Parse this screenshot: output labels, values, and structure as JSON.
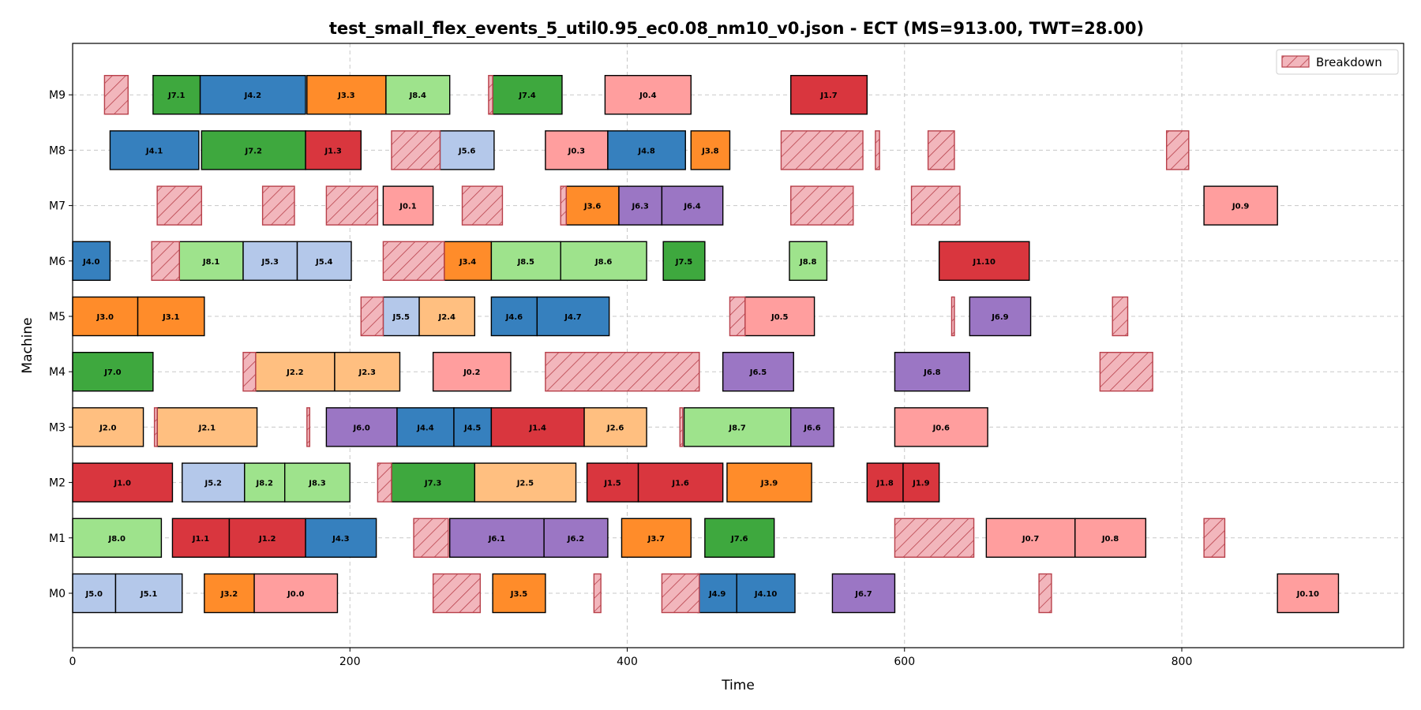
{
  "chart_data": {
    "type": "gantt",
    "title": "test_small_flex_events_5_util0.95_ec0.08_nm10_v0.json - ECT (MS=913.00, TWT=28.00)",
    "xlabel": "Time",
    "ylabel": "Machine",
    "xlim": [
      0,
      960
    ],
    "xticks": [
      0,
      200,
      400,
      600,
      800
    ],
    "machines": [
      "M0",
      "M1",
      "M2",
      "M3",
      "M4",
      "M5",
      "M6",
      "M7",
      "M8",
      "M9"
    ],
    "grid": true,
    "legend": {
      "label": "Breakdown",
      "position": "top-right"
    },
    "job_colors": {
      "J0": "#ff9e9e",
      "J1": "#d9363e",
      "J2": "#ffbf80",
      "J3": "#ff8c2a",
      "J4": "#3680be",
      "J5": "#b4c8ea",
      "J6": "#9b76c4",
      "J7": "#3ea83e",
      "J8": "#9ee38c"
    },
    "breakdown_style": {
      "fill": "#f2b6bc",
      "stroke": "#b8404a"
    },
    "operations": [
      {
        "machine": "M0",
        "label": "J5.0",
        "job": "J5",
        "start": 0,
        "end": 31
      },
      {
        "machine": "M0",
        "label": "J5.1",
        "job": "J5",
        "start": 31,
        "end": 79
      },
      {
        "machine": "M0",
        "label": "J3.2",
        "job": "J3",
        "start": 95,
        "end": 131
      },
      {
        "machine": "M0",
        "label": "J0.0",
        "job": "J0",
        "start": 131,
        "end": 191
      },
      {
        "machine": "M0",
        "label": "J3.5",
        "job": "J3",
        "start": 303,
        "end": 341
      },
      {
        "machine": "M0",
        "label": "J4.9",
        "job": "J4",
        "start": 451,
        "end": 479
      },
      {
        "machine": "M0",
        "label": "J4.10",
        "job": "J4",
        "start": 479,
        "end": 521
      },
      {
        "machine": "M0",
        "label": "J6.7",
        "job": "J6",
        "start": 548,
        "end": 593
      },
      {
        "machine": "M0",
        "label": "J0.10",
        "job": "J0",
        "start": 869,
        "end": 913
      },
      {
        "machine": "M1",
        "label": "J8.0",
        "job": "J8",
        "start": 0,
        "end": 64
      },
      {
        "machine": "M1",
        "label": "J1.1",
        "job": "J1",
        "start": 72,
        "end": 113
      },
      {
        "machine": "M1",
        "label": "J1.2",
        "job": "J1",
        "start": 113,
        "end": 168
      },
      {
        "machine": "M1",
        "label": "J4.3",
        "job": "J4",
        "start": 168,
        "end": 219
      },
      {
        "machine": "M1",
        "label": "J6.1",
        "job": "J6",
        "start": 272,
        "end": 340
      },
      {
        "machine": "M1",
        "label": "J6.2",
        "job": "J6",
        "start": 340,
        "end": 386
      },
      {
        "machine": "M1",
        "label": "J3.7",
        "job": "J3",
        "start": 396,
        "end": 446
      },
      {
        "machine": "M1",
        "label": "J7.6",
        "job": "J7",
        "start": 456,
        "end": 506
      },
      {
        "machine": "M1",
        "label": "J0.7",
        "job": "J0",
        "start": 659,
        "end": 723
      },
      {
        "machine": "M1",
        "label": "J0.8",
        "job": "J0",
        "start": 723,
        "end": 774
      },
      {
        "machine": "M2",
        "label": "J1.0",
        "job": "J1",
        "start": 0,
        "end": 72
      },
      {
        "machine": "M2",
        "label": "J5.2",
        "job": "J5",
        "start": 79,
        "end": 124
      },
      {
        "machine": "M2",
        "label": "J8.2",
        "job": "J8",
        "start": 124,
        "end": 153
      },
      {
        "machine": "M2",
        "label": "J8.3",
        "job": "J8",
        "start": 153,
        "end": 200
      },
      {
        "machine": "M2",
        "label": "J7.3",
        "job": "J7",
        "start": 230,
        "end": 290
      },
      {
        "machine": "M2",
        "label": "J2.5",
        "job": "J2",
        "start": 290,
        "end": 363
      },
      {
        "machine": "M2",
        "label": "J1.5",
        "job": "J1",
        "start": 371,
        "end": 408
      },
      {
        "machine": "M2",
        "label": "J1.6",
        "job": "J1",
        "start": 408,
        "end": 469
      },
      {
        "machine": "M2",
        "label": "J3.9",
        "job": "J3",
        "start": 472,
        "end": 533
      },
      {
        "machine": "M2",
        "label": "J1.8",
        "job": "J1",
        "start": 573,
        "end": 599
      },
      {
        "machine": "M2",
        "label": "J1.9",
        "job": "J1",
        "start": 599,
        "end": 625
      },
      {
        "machine": "M3",
        "label": "J2.0",
        "job": "J2",
        "start": 0,
        "end": 51
      },
      {
        "machine": "M3",
        "label": "J2.1",
        "job": "J2",
        "start": 61,
        "end": 133
      },
      {
        "machine": "M3",
        "label": "J6.0",
        "job": "J6",
        "start": 183,
        "end": 234
      },
      {
        "machine": "M3",
        "label": "J4.4",
        "job": "J4",
        "start": 234,
        "end": 275
      },
      {
        "machine": "M3",
        "label": "J4.5",
        "job": "J4",
        "start": 275,
        "end": 302
      },
      {
        "machine": "M3",
        "label": "J1.4",
        "job": "J1",
        "start": 302,
        "end": 369
      },
      {
        "machine": "M3",
        "label": "J2.6",
        "job": "J2",
        "start": 369,
        "end": 414
      },
      {
        "machine": "M3",
        "label": "J8.7",
        "job": "J8",
        "start": 441,
        "end": 518
      },
      {
        "machine": "M3",
        "label": "J6.6",
        "job": "J6",
        "start": 518,
        "end": 549
      },
      {
        "machine": "M3",
        "label": "J0.6",
        "job": "J0",
        "start": 593,
        "end": 660
      },
      {
        "machine": "M4",
        "label": "J7.0",
        "job": "J7",
        "start": 0,
        "end": 58
      },
      {
        "machine": "M4",
        "label": "J2.2",
        "job": "J2",
        "start": 132,
        "end": 189
      },
      {
        "machine": "M4",
        "label": "J2.3",
        "job": "J2",
        "start": 189,
        "end": 236
      },
      {
        "machine": "M4",
        "label": "J0.2",
        "job": "J0",
        "start": 260,
        "end": 316
      },
      {
        "machine": "M4",
        "label": "J6.5",
        "job": "J6",
        "start": 469,
        "end": 520
      },
      {
        "machine": "M4",
        "label": "J6.8",
        "job": "J6",
        "start": 593,
        "end": 647
      },
      {
        "machine": "M5",
        "label": "J3.0",
        "job": "J3",
        "start": 0,
        "end": 47
      },
      {
        "machine": "M5",
        "label": "J3.1",
        "job": "J3",
        "start": 47,
        "end": 95
      },
      {
        "machine": "M5",
        "label": "J5.5",
        "job": "J5",
        "start": 224,
        "end": 250
      },
      {
        "machine": "M5",
        "label": "J2.4",
        "job": "J2",
        "start": 250,
        "end": 290
      },
      {
        "machine": "M5",
        "label": "J4.6",
        "job": "J4",
        "start": 302,
        "end": 335
      },
      {
        "machine": "M5",
        "label": "J4.7",
        "job": "J4",
        "start": 335,
        "end": 387
      },
      {
        "machine": "M5",
        "label": "J0.5",
        "job": "J0",
        "start": 485,
        "end": 535
      },
      {
        "machine": "M5",
        "label": "J6.9",
        "job": "J6",
        "start": 647,
        "end": 691
      },
      {
        "machine": "M6",
        "label": "J4.0",
        "job": "J4",
        "start": 0,
        "end": 27
      },
      {
        "machine": "M6",
        "label": "J8.1",
        "job": "J8",
        "start": 77,
        "end": 123
      },
      {
        "machine": "M6",
        "label": "J5.3",
        "job": "J5",
        "start": 123,
        "end": 162
      },
      {
        "machine": "M6",
        "label": "J5.4",
        "job": "J5",
        "start": 162,
        "end": 201
      },
      {
        "machine": "M6",
        "label": "J3.4",
        "job": "J3",
        "start": 268,
        "end": 302
      },
      {
        "machine": "M6",
        "label": "J8.5",
        "job": "J8",
        "start": 302,
        "end": 352
      },
      {
        "machine": "M6",
        "label": "J8.6",
        "job": "J8",
        "start": 352,
        "end": 414
      },
      {
        "machine": "M6",
        "label": "J7.5",
        "job": "J7",
        "start": 426,
        "end": 456
      },
      {
        "machine": "M6",
        "label": "J8.8",
        "job": "J8",
        "start": 517,
        "end": 544
      },
      {
        "machine": "M6",
        "label": "J1.10",
        "job": "J1",
        "start": 625,
        "end": 690
      },
      {
        "machine": "M7",
        "label": "J0.1",
        "job": "J0",
        "start": 224,
        "end": 260
      },
      {
        "machine": "M7",
        "label": "J3.6",
        "job": "J3",
        "start": 356,
        "end": 394
      },
      {
        "machine": "M7",
        "label": "J6.3",
        "job": "J6",
        "start": 394,
        "end": 425
      },
      {
        "machine": "M7",
        "label": "J6.4",
        "job": "J6",
        "start": 425,
        "end": 469
      },
      {
        "machine": "M7",
        "label": "J0.9",
        "job": "J0",
        "start": 816,
        "end": 869
      },
      {
        "machine": "M8",
        "label": "J4.1",
        "job": "J4",
        "start": 27,
        "end": 91
      },
      {
        "machine": "M8",
        "label": "J7.2",
        "job": "J7",
        "start": 93,
        "end": 168
      },
      {
        "machine": "M8",
        "label": "J1.3",
        "job": "J1",
        "start": 168,
        "end": 208
      },
      {
        "machine": "M8",
        "label": "J5.6",
        "job": "J5",
        "start": 265,
        "end": 304
      },
      {
        "machine": "M8",
        "label": "J0.3",
        "job": "J0",
        "start": 341,
        "end": 386
      },
      {
        "machine": "M8",
        "label": "J4.8",
        "job": "J4",
        "start": 386,
        "end": 442
      },
      {
        "machine": "M8",
        "label": "J3.8",
        "job": "J3",
        "start": 446,
        "end": 474
      },
      {
        "machine": "M9",
        "label": "J7.1",
        "job": "J7",
        "start": 58,
        "end": 92
      },
      {
        "machine": "M9",
        "label": "J4.2",
        "job": "J4",
        "start": 92,
        "end": 168
      },
      {
        "machine": "M9",
        "label": "J3.3",
        "job": "J3",
        "start": 169,
        "end": 226
      },
      {
        "machine": "M9",
        "label": "J8.4",
        "job": "J8",
        "start": 226,
        "end": 272
      },
      {
        "machine": "M9",
        "label": "J7.4",
        "job": "J7",
        "start": 303,
        "end": 353
      },
      {
        "machine": "M9",
        "label": "J0.4",
        "job": "J0",
        "start": 384,
        "end": 446
      },
      {
        "machine": "M9",
        "label": "J1.7",
        "job": "J1",
        "start": 518,
        "end": 573
      }
    ],
    "breakdowns": [
      {
        "machine": "M0",
        "start": 260,
        "end": 294
      },
      {
        "machine": "M0",
        "start": 376,
        "end": 381
      },
      {
        "machine": "M0",
        "start": 425,
        "end": 452
      },
      {
        "machine": "M0",
        "start": 697,
        "end": 706
      },
      {
        "machine": "M1",
        "start": 246,
        "end": 271
      },
      {
        "machine": "M1",
        "start": 593,
        "end": 650
      },
      {
        "machine": "M1",
        "start": 816,
        "end": 831
      },
      {
        "machine": "M2",
        "start": 220,
        "end": 230
      },
      {
        "machine": "M3",
        "start": 59,
        "end": 61
      },
      {
        "machine": "M3",
        "start": 169,
        "end": 171
      },
      {
        "machine": "M3",
        "start": 438,
        "end": 440
      },
      {
        "machine": "M4",
        "start": 123,
        "end": 132
      },
      {
        "machine": "M4",
        "start": 341,
        "end": 452
      },
      {
        "machine": "M4",
        "start": 741,
        "end": 779
      },
      {
        "machine": "M5",
        "start": 208,
        "end": 224
      },
      {
        "machine": "M5",
        "start": 474,
        "end": 485
      },
      {
        "machine": "M5",
        "start": 634,
        "end": 636
      },
      {
        "machine": "M5",
        "start": 750,
        "end": 761
      },
      {
        "machine": "M6",
        "start": 57,
        "end": 77
      },
      {
        "machine": "M6",
        "start": 224,
        "end": 268
      },
      {
        "machine": "M7",
        "start": 61,
        "end": 93
      },
      {
        "machine": "M7",
        "start": 137,
        "end": 160
      },
      {
        "machine": "M7",
        "start": 183,
        "end": 220
      },
      {
        "machine": "M7",
        "start": 281,
        "end": 310
      },
      {
        "machine": "M7",
        "start": 352,
        "end": 356
      },
      {
        "machine": "M7",
        "start": 518,
        "end": 563
      },
      {
        "machine": "M7",
        "start": 605,
        "end": 640
      },
      {
        "machine": "M8",
        "start": 230,
        "end": 265
      },
      {
        "machine": "M8",
        "start": 511,
        "end": 570
      },
      {
        "machine": "M8",
        "start": 579,
        "end": 582
      },
      {
        "machine": "M8",
        "start": 617,
        "end": 636
      },
      {
        "machine": "M8",
        "start": 789,
        "end": 805
      },
      {
        "machine": "M9",
        "start": 23,
        "end": 40
      },
      {
        "machine": "M9",
        "start": 300,
        "end": 303
      }
    ]
  }
}
